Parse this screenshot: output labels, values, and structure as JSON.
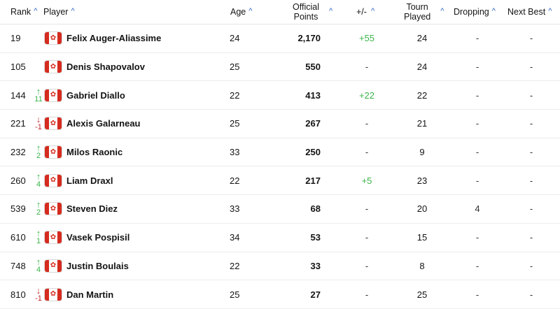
{
  "headers": {
    "rank": "Rank",
    "player": "Player",
    "age": "Age",
    "points_line1": "Official",
    "points_line2": "Points",
    "plusminus": "+/-",
    "tourn_line1": "Tourn",
    "tourn_line2": "Played",
    "dropping": "Dropping",
    "next_best": "Next Best"
  },
  "sort_icon": "caret-up-icon",
  "flag_icon": "canada-flag-icon",
  "colors": {
    "up": "#3bb54a",
    "down": "#c0282d",
    "accent": "#2b63c9",
    "flag_red": "#d52b1e"
  },
  "rows": [
    {
      "rank": "19",
      "move_dir": "",
      "move": "",
      "name": "Felix Auger-Aliassime",
      "age": "24",
      "points": "2,170",
      "plusminus": "+55",
      "tourn": "24",
      "dropping": "-",
      "next_best": "-"
    },
    {
      "rank": "105",
      "move_dir": "",
      "move": "",
      "name": "Denis Shapovalov",
      "age": "25",
      "points": "550",
      "plusminus": "-",
      "tourn": "24",
      "dropping": "-",
      "next_best": "-"
    },
    {
      "rank": "144",
      "move_dir": "up",
      "move": "11",
      "name": "Gabriel Diallo",
      "age": "22",
      "points": "413",
      "plusminus": "+22",
      "tourn": "22",
      "dropping": "-",
      "next_best": "-"
    },
    {
      "rank": "221",
      "move_dir": "down",
      "move": "-1",
      "name": "Alexis Galarneau",
      "age": "25",
      "points": "267",
      "plusminus": "-",
      "tourn": "21",
      "dropping": "-",
      "next_best": "-"
    },
    {
      "rank": "232",
      "move_dir": "up",
      "move": "2",
      "name": "Milos Raonic",
      "age": "33",
      "points": "250",
      "plusminus": "-",
      "tourn": "9",
      "dropping": "-",
      "next_best": "-"
    },
    {
      "rank": "260",
      "move_dir": "up",
      "move": "4",
      "name": "Liam Draxl",
      "age": "22",
      "points": "217",
      "plusminus": "+5",
      "tourn": "23",
      "dropping": "-",
      "next_best": "-"
    },
    {
      "rank": "539",
      "move_dir": "up",
      "move": "2",
      "name": "Steven Diez",
      "age": "33",
      "points": "68",
      "plusminus": "-",
      "tourn": "20",
      "dropping": "4",
      "next_best": "-"
    },
    {
      "rank": "610",
      "move_dir": "up",
      "move": "1",
      "name": "Vasek Pospisil",
      "age": "34",
      "points": "53",
      "plusminus": "-",
      "tourn": "15",
      "dropping": "-",
      "next_best": "-"
    },
    {
      "rank": "748",
      "move_dir": "up",
      "move": "4",
      "name": "Justin Boulais",
      "age": "22",
      "points": "33",
      "plusminus": "-",
      "tourn": "8",
      "dropping": "-",
      "next_best": "-"
    },
    {
      "rank": "810",
      "move_dir": "down",
      "move": "-1",
      "name": "Dan Martin",
      "age": "25",
      "points": "27",
      "plusminus": "-",
      "tourn": "25",
      "dropping": "-",
      "next_best": "-"
    }
  ]
}
